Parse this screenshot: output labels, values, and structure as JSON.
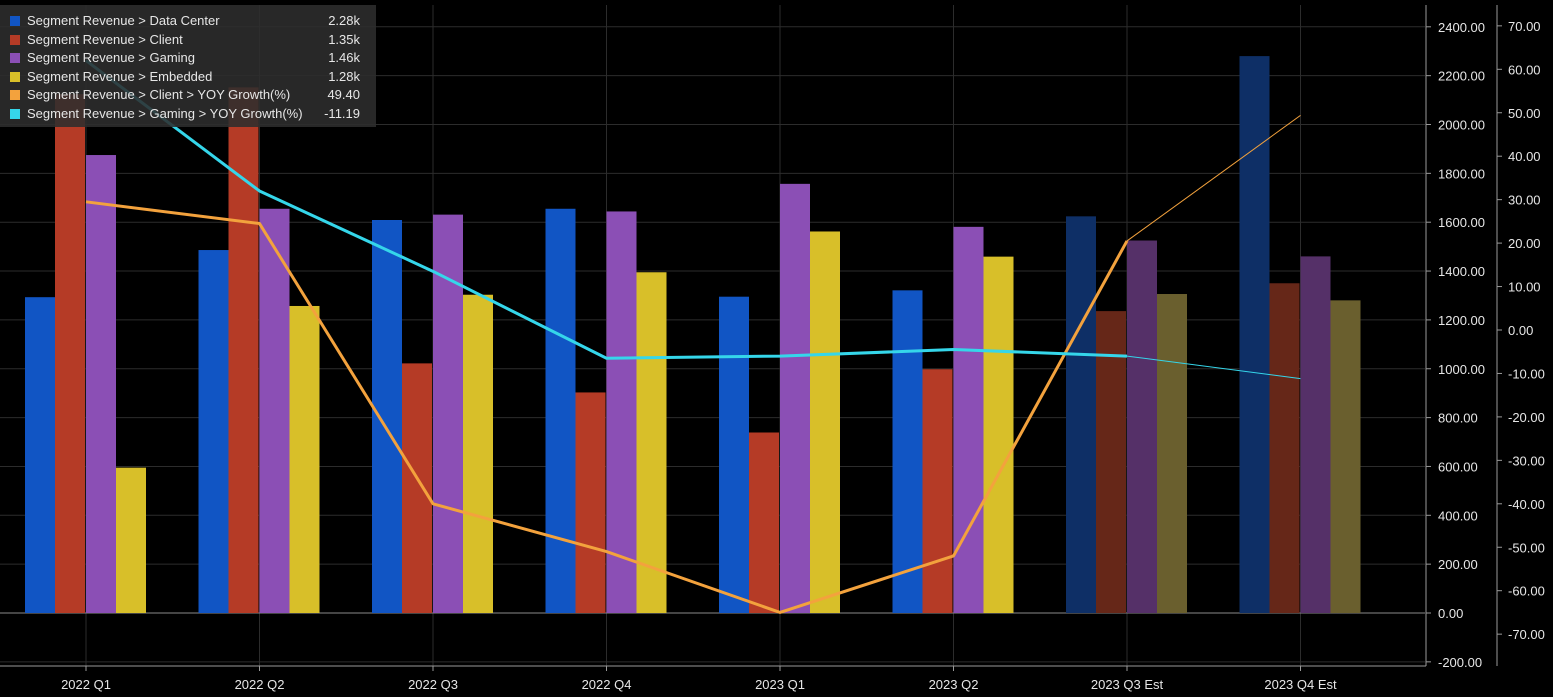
{
  "chart_data": {
    "type": "bar",
    "categories": [
      "2022 Q1",
      "2022 Q2",
      "2022 Q3",
      "2022 Q4",
      "2023 Q1",
      "2023 Q2",
      "2023 Q3 Est",
      "2023 Q4 Est"
    ],
    "estimated_from_index": 6,
    "bar_series": [
      {
        "name": "Segment Revenue > Data Center",
        "legend_value": "2.28k",
        "color": "#1155c4",
        "est_color": "#0e2f66",
        "values": [
          1293,
          1486,
          1609,
          1655,
          1295,
          1321,
          1624,
          2280
        ]
      },
      {
        "name": "Segment Revenue > Client",
        "legend_value": "1.35k",
        "color": "#b53b26",
        "est_color": "#662718",
        "values": [
          2124,
          2152,
          1022,
          903,
          739,
          998,
          1236,
          1350
        ]
      },
      {
        "name": "Segment Revenue > Gaming",
        "legend_value": "1.46k",
        "color": "#8b4fb5",
        "est_color": "#553068",
        "values": [
          1875,
          1655,
          1631,
          1644,
          1757,
          1581,
          1525,
          1460
        ]
      },
      {
        "name": "Segment Revenue > Embedded",
        "legend_value": "1.28k",
        "color": "#d8bf29",
        "est_color": "#6a5f2e",
        "values": [
          595,
          1257,
          1303,
          1395,
          1562,
          1459,
          1306,
          1280
        ]
      }
    ],
    "line_series": [
      {
        "name": "Segment Revenue > Client > YOY Growth(%)",
        "legend_value": "49.40",
        "color": "#f3a23d",
        "values": [
          29.5,
          24.5,
          -40.0,
          -51.0,
          -65.0,
          -52.0,
          20.5,
          49.4
        ]
      },
      {
        "name": "Segment Revenue > Gaming > YOY Growth(%)",
        "legend_value": "-11.19",
        "color": "#35d6ea",
        "values": [
          62.0,
          32.0,
          13.5,
          -6.5,
          -6.0,
          -4.5,
          -6.0,
          -11.19
        ]
      }
    ],
    "y_left": {
      "min": -200,
      "max": 2400,
      "ticks": [
        "-200.00",
        "0.00",
        "200.00",
        "400.00",
        "600.00",
        "800.00",
        "1000.00",
        "1200.00",
        "1400.00",
        "1600.00",
        "1800.00",
        "2000.00",
        "2200.00",
        "2400.00"
      ]
    },
    "y_right": {
      "min": -70,
      "max": 70,
      "ticks": [
        "-70.00",
        "-60.00",
        "-50.00",
        "-40.00",
        "-30.00",
        "-20.00",
        "-10.00",
        "0.00",
        "10.00",
        "20.00",
        "30.00",
        "40.00",
        "50.00",
        "60.00",
        "70.00"
      ]
    },
    "legend_position": "top-left",
    "grid": true
  }
}
